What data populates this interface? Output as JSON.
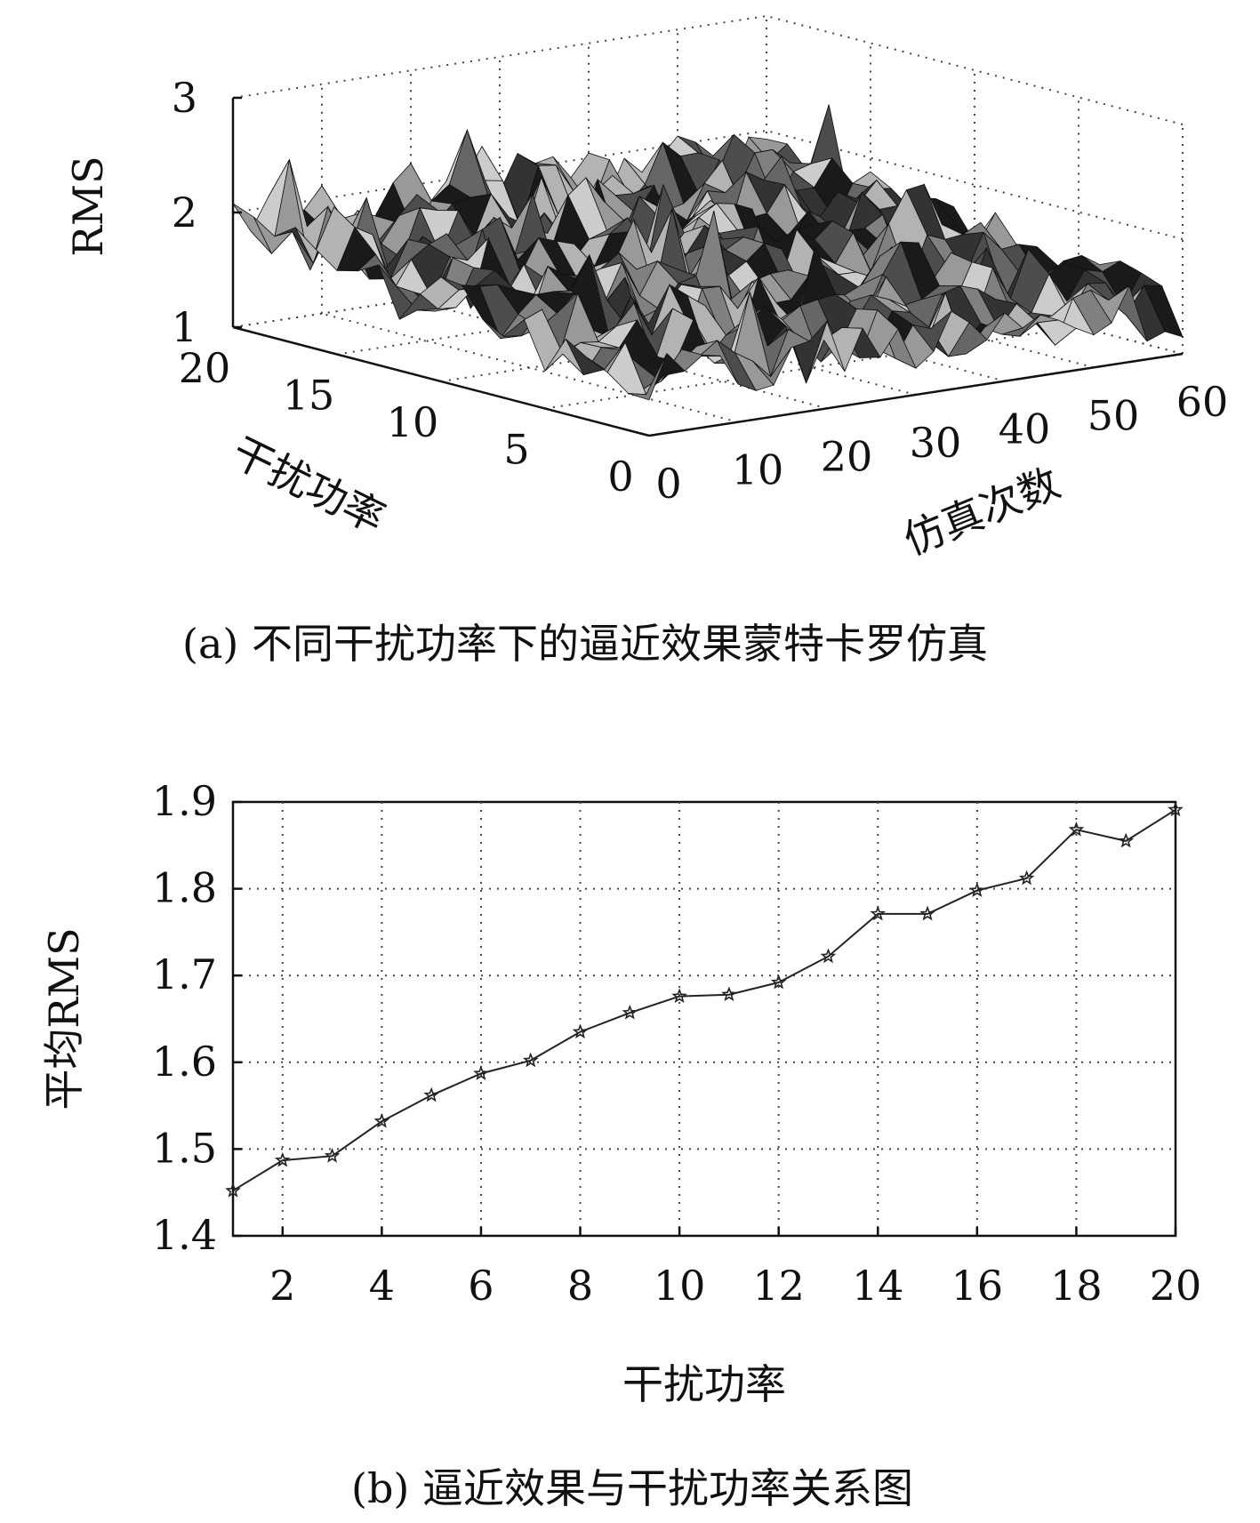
{
  "chart_data": [
    {
      "type": "surface",
      "zlabel": "RMS",
      "xlabel": "仿真次数",
      "ylabel": "干扰功率",
      "x_ticks": [
        "0",
        "10",
        "20",
        "30",
        "40",
        "50",
        "60"
      ],
      "y_ticks": [
        "0",
        "5",
        "10",
        "15",
        "20"
      ],
      "z_ticks": [
        "1",
        "2",
        "3"
      ],
      "xlim": [
        0,
        60
      ],
      "ylim": [
        0,
        20
      ],
      "zlim": [
        1,
        3
      ],
      "grid": true,
      "colormap": "gray",
      "caption": "(a) 不同干扰功率下的逼近效果蒙特卡罗仿真"
    },
    {
      "type": "line",
      "x": [
        1,
        2,
        3,
        4,
        5,
        6,
        7,
        8,
        9,
        10,
        11,
        12,
        13,
        14,
        15,
        16,
        17,
        18,
        19,
        20
      ],
      "series": [
        {
          "values": [
            1.452,
            1.487,
            1.492,
            1.532,
            1.562,
            1.587,
            1.602,
            1.635,
            1.657,
            1.676,
            1.678,
            1.692,
            1.722,
            1.771,
            1.771,
            1.798,
            1.812,
            1.868,
            1.855,
            1.891
          ],
          "marker": "star",
          "color": "#222222"
        }
      ],
      "x_ticks": [
        "2",
        "4",
        "6",
        "8",
        "10",
        "12",
        "14",
        "16",
        "18",
        "20"
      ],
      "y_ticks": [
        "1.4",
        "1.5",
        "1.6",
        "1.7",
        "1.8",
        "1.9"
      ],
      "xlabel": "干扰功率",
      "ylabel": "平均RMS",
      "xlim": [
        1,
        20
      ],
      "ylim": [
        1.4,
        1.9
      ],
      "grid": true,
      "caption": "(b) 逼近效果与干扰功率关系图"
    }
  ]
}
